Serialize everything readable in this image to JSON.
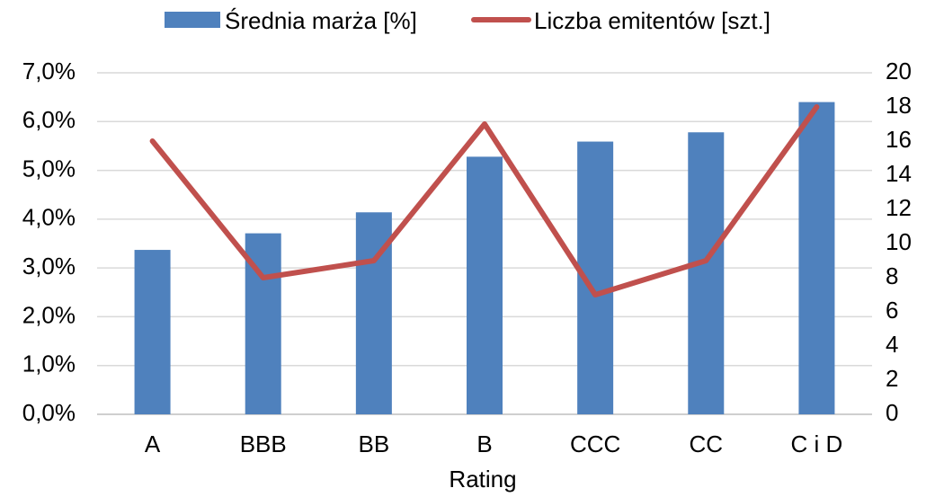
{
  "chart_data": {
    "type": "bar",
    "categories": [
      "A",
      "BBB",
      "BB",
      "B",
      "CCC",
      "CC",
      "C i D"
    ],
    "series": [
      {
        "name": "Średnia marża [%]",
        "kind": "bar",
        "axis": "left",
        "color": "#4f81bd",
        "values": [
          3.37,
          3.71,
          4.14,
          5.28,
          5.59,
          5.78,
          6.4
        ]
      },
      {
        "name": "Liczba emitentów [szt.]",
        "kind": "line",
        "axis": "right",
        "color": "#c0504d",
        "values": [
          16,
          8,
          9,
          17,
          7,
          9,
          18
        ]
      }
    ],
    "xlabel": "Rating",
    "y_left": {
      "ylim": [
        0,
        7
      ],
      "ticks": [
        "0,0%",
        "1,0%",
        "2,0%",
        "3,0%",
        "4,0%",
        "5,0%",
        "6,0%",
        "7,0%"
      ]
    },
    "y_right": {
      "ylim": [
        0,
        20
      ],
      "ticks": [
        "0",
        "2",
        "4",
        "6",
        "8",
        "10",
        "12",
        "14",
        "16",
        "18",
        "20"
      ]
    },
    "grid": true,
    "legend_position": "top"
  }
}
